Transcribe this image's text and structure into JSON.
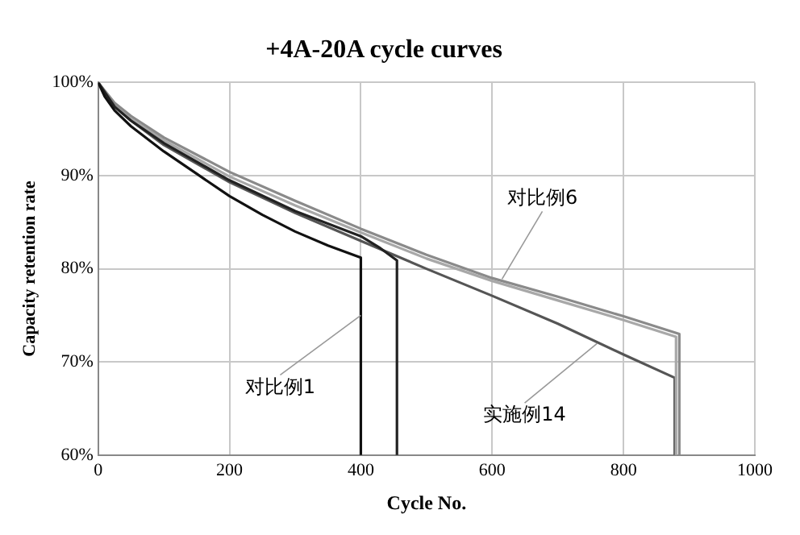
{
  "chart_data": {
    "type": "line",
    "title": "+4A-20A cycle curves",
    "xlabel": "Cycle No.",
    "ylabel": "Capacity retention rate",
    "xlim": [
      0,
      1000
    ],
    "xticks": [
      0,
      200,
      400,
      600,
      800,
      1000
    ],
    "ylim": [
      60,
      100
    ],
    "yticks": [
      {
        "value": 60,
        "label": "60%"
      },
      {
        "value": 70,
        "label": "70%"
      },
      {
        "value": 80,
        "label": "80%"
      },
      {
        "value": 90,
        "label": "90%"
      },
      {
        "value": 100,
        "label": "100%"
      }
    ],
    "grid": true,
    "legend": false,
    "marker": "none",
    "line_style": "solid",
    "series": [
      {
        "color": "#111111",
        "x": [
          0,
          10,
          25,
          50,
          100,
          150,
          200,
          250,
          300,
          350,
          400,
          400
        ],
        "values": [
          100,
          98.5,
          97,
          95.3,
          92.6,
          90.2,
          87.8,
          85.8,
          84,
          82.5,
          81.2,
          60
        ]
      },
      {
        "color": "#222222",
        "x": [
          0,
          25,
          50,
          100,
          200,
          300,
          400,
          430,
          455,
          455
        ],
        "values": [
          100,
          97.4,
          95.9,
          93.5,
          89.5,
          86.2,
          83.5,
          82.2,
          80.9,
          60
        ]
      },
      {
        "color": "#8a8a8a",
        "x": [
          0,
          25,
          50,
          100,
          200,
          300,
          400,
          500,
          600,
          700,
          800,
          885,
          885
        ],
        "values": [
          100,
          97.8,
          96.4,
          94.1,
          90.4,
          87.3,
          84.3,
          81.5,
          79,
          77,
          74.9,
          73,
          60
        ]
      },
      {
        "color": "#a8a8a8",
        "x": [
          0,
          25,
          50,
          100,
          200,
          300,
          400,
          500,
          600,
          700,
          800,
          880,
          880
        ],
        "values": [
          100,
          97.6,
          96.1,
          93.8,
          89.9,
          86.8,
          83.9,
          81.1,
          78.7,
          76.6,
          74.5,
          72.7,
          60
        ]
      },
      {
        "color": "#555555",
        "x": [
          0,
          25,
          50,
          100,
          200,
          300,
          400,
          500,
          600,
          700,
          800,
          878,
          878
        ],
        "values": [
          100,
          97.5,
          95.9,
          93.3,
          89.3,
          86,
          83,
          80,
          77.1,
          74.1,
          70.8,
          68.3,
          60
        ]
      }
    ],
    "annotations": [
      {
        "text": "对比例1",
        "x": 400,
        "y": 75
      },
      {
        "text": "对比例6",
        "x": 615,
        "y": 78.9
      },
      {
        "text": "实施例14",
        "x": 760,
        "y": 72
      }
    ]
  }
}
